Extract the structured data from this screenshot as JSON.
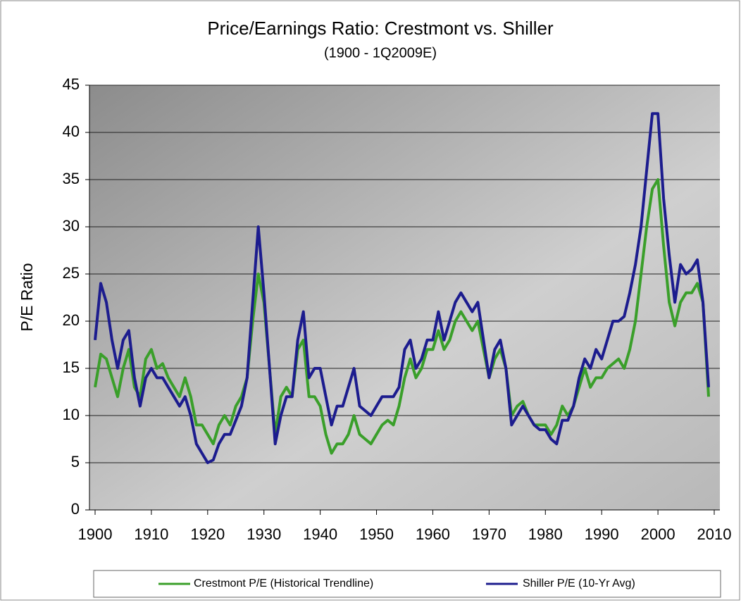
{
  "chart_data": {
    "type": "line",
    "title": "Price/Earnings Ratio: Crestmont vs. Shiller",
    "subtitle": "(1900 - 1Q2009E)",
    "y_label": "P/E Ratio",
    "x": [
      1900,
      1901,
      1902,
      1903,
      1904,
      1905,
      1906,
      1907,
      1908,
      1909,
      1910,
      1911,
      1912,
      1913,
      1914,
      1915,
      1916,
      1917,
      1918,
      1919,
      1920,
      1921,
      1922,
      1923,
      1924,
      1925,
      1926,
      1927,
      1928,
      1929,
      1930,
      1931,
      1932,
      1933,
      1934,
      1935,
      1936,
      1937,
      1938,
      1939,
      1940,
      1941,
      1942,
      1943,
      1944,
      1945,
      1946,
      1947,
      1948,
      1949,
      1950,
      1951,
      1952,
      1953,
      1954,
      1955,
      1956,
      1957,
      1958,
      1959,
      1960,
      1961,
      1962,
      1963,
      1964,
      1965,
      1966,
      1967,
      1968,
      1969,
      1970,
      1971,
      1972,
      1973,
      1974,
      1975,
      1976,
      1977,
      1978,
      1979,
      1980,
      1981,
      1982,
      1983,
      1984,
      1985,
      1986,
      1987,
      1988,
      1989,
      1990,
      1991,
      1992,
      1993,
      1994,
      1995,
      1996,
      1997,
      1998,
      1999,
      2000,
      2001,
      2002,
      2003,
      2004,
      2005,
      2006,
      2007,
      2008,
      2009
    ],
    "series": [
      {
        "name": "Crestmont P/E (Historical Trendline)",
        "color": "#3a9f2a",
        "values": [
          13,
          16.5,
          16,
          14,
          12,
          15,
          17,
          13,
          12,
          16,
          17,
          15,
          15.5,
          14,
          13,
          12,
          14,
          12,
          9,
          9,
          8,
          7,
          9,
          10,
          9,
          11,
          12,
          14,
          20,
          25,
          22,
          15,
          8,
          12,
          13,
          12,
          17,
          18,
          12,
          12,
          11,
          8,
          6,
          7,
          7,
          8,
          10,
          8,
          7.5,
          7,
          8,
          9,
          9.5,
          9,
          11,
          14,
          16,
          14,
          15,
          17,
          17,
          19,
          17,
          18,
          20,
          21,
          20,
          19,
          20,
          17,
          14,
          16,
          17,
          15,
          10,
          11,
          11.5,
          10,
          9,
          9,
          9,
          8,
          9,
          11,
          10,
          11,
          13,
          15,
          13,
          14,
          14,
          15,
          15.5,
          16,
          15,
          17,
          20,
          25,
          30,
          34,
          35,
          28,
          22,
          19.5,
          22,
          23,
          23,
          24,
          22,
          12
        ]
      },
      {
        "name": "Shiller P/E (10-Yr Avg)",
        "color": "#1c1c8e",
        "values": [
          18,
          24,
          22,
          18,
          15,
          18,
          19,
          14,
          11,
          14,
          15,
          14,
          14,
          13,
          12,
          11,
          12,
          10,
          7,
          6,
          5,
          5.3,
          7,
          8,
          8,
          9.5,
          11,
          14,
          22,
          30,
          23,
          15,
          7,
          10,
          12,
          12,
          18,
          21,
          14,
          15,
          15,
          12,
          9,
          11,
          11,
          13,
          15,
          11,
          10.5,
          10,
          11,
          12,
          12,
          12,
          13,
          17,
          18,
          15,
          16,
          18,
          18,
          21,
          18,
          20,
          22,
          23,
          22,
          21,
          22,
          18,
          14,
          17,
          18,
          15,
          9,
          10,
          11,
          10,
          9,
          8.5,
          8.5,
          7.5,
          7,
          9.5,
          9.5,
          11,
          14,
          16,
          15,
          17,
          16,
          18,
          20,
          20,
          20.5,
          23,
          26,
          30,
          36,
          42,
          42,
          33,
          27,
          22,
          26,
          25,
          25.5,
          26.5,
          22,
          13
        ]
      }
    ],
    "xlim": [
      1899,
      2011
    ],
    "ylim": [
      0,
      45
    ],
    "xticks": [
      1900,
      1910,
      1920,
      1930,
      1940,
      1950,
      1960,
      1970,
      1980,
      1990,
      2000,
      2010
    ],
    "yticks": [
      0,
      5,
      10,
      15,
      20,
      25,
      30,
      35,
      40,
      45
    ],
    "grid": true,
    "legend": "bottom"
  }
}
